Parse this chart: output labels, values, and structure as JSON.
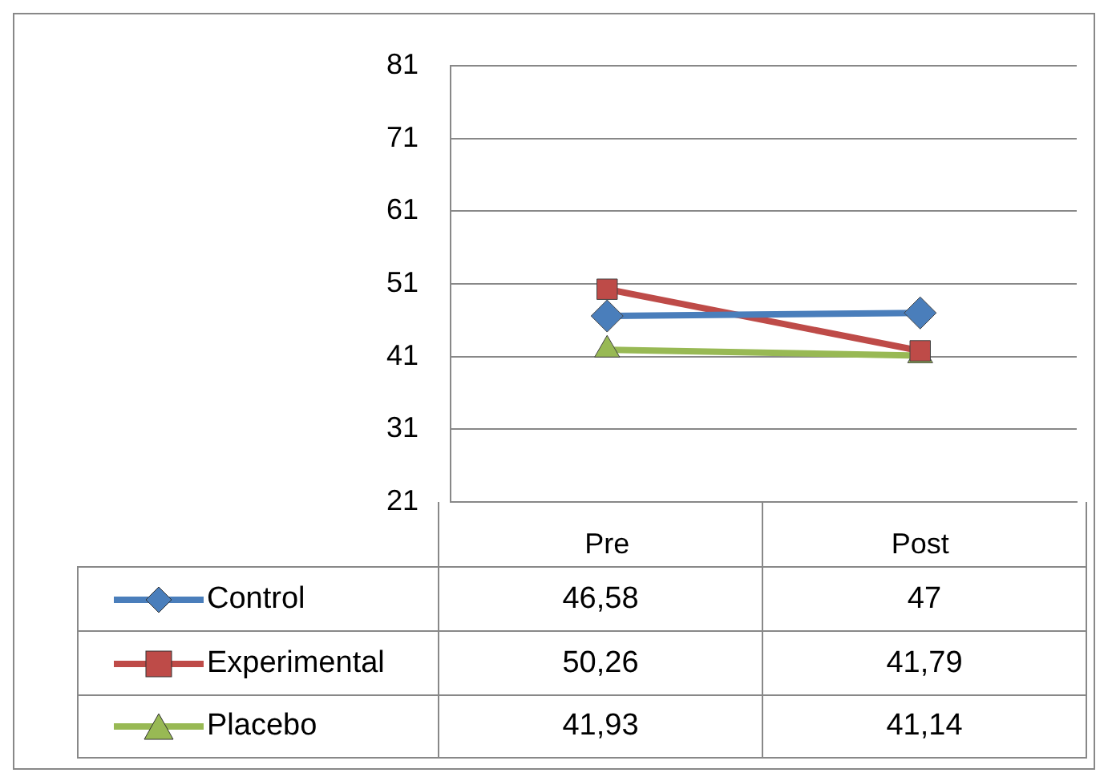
{
  "chart_data": {
    "type": "line",
    "categories": [
      "Pre",
      "Post"
    ],
    "series": [
      {
        "name": "Control",
        "color": "#4a7ebb",
        "marker": "diamond",
        "values": [
          46.58,
          47
        ],
        "value_labels": [
          "46,58",
          "47"
        ]
      },
      {
        "name": "Experimental",
        "color": "#be4b48",
        "marker": "square",
        "values": [
          50.26,
          41.79
        ],
        "value_labels": [
          "50,26",
          "41,79"
        ]
      },
      {
        "name": "Placebo",
        "color": "#98b954",
        "marker": "triangle",
        "values": [
          41.93,
          41.14
        ],
        "value_labels": [
          "41,93",
          "41,14"
        ]
      }
    ],
    "ylim": [
      21,
      81
    ],
    "yticks": [
      21,
      31,
      41,
      51,
      61,
      71,
      81
    ],
    "grid": "y",
    "legend": "bottom left"
  }
}
